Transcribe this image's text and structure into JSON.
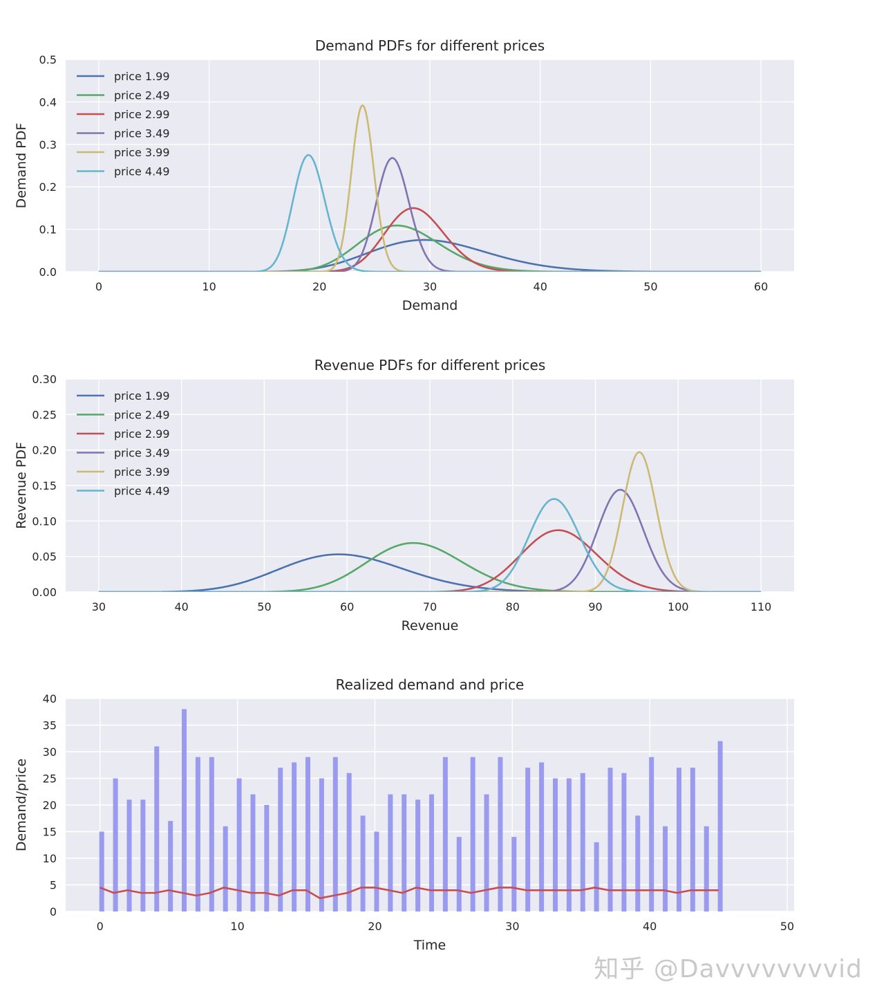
{
  "watermark": "知乎 @Davvvvvvvvid",
  "colors": {
    "panel_bg": "#eaeaf2",
    "grid": "#ffffff",
    "text": "#262626",
    "bar": "#9a9aee",
    "price_line": "#c44e52"
  },
  "chart_data": [
    {
      "type": "line",
      "title": "Demand PDFs for different prices",
      "xlabel": "Demand",
      "ylabel": "Demand PDF",
      "xlim": [
        -3,
        63
      ],
      "ylim": [
        0,
        0.5
      ],
      "xticks": [
        0,
        10,
        20,
        30,
        40,
        50,
        60
      ],
      "yticks": [
        0.0,
        0.1,
        0.2,
        0.3,
        0.4,
        0.5
      ],
      "ytick_labels": [
        "0.0",
        "0.1",
        "0.2",
        "0.3",
        "0.4",
        "0.5"
      ],
      "grid": true,
      "legend_position": "top-left",
      "x_range": [
        0,
        60
      ],
      "series": [
        {
          "name": "price 1.99",
          "color": "#4c72b0",
          "peak_x": 29.5,
          "peak_y": 0.075
        },
        {
          "name": "price 2.49",
          "color": "#55a868",
          "peak_x": 27.0,
          "peak_y": 0.109
        },
        {
          "name": "price 2.99",
          "color": "#c44e52",
          "peak_x": 28.5,
          "peak_y": 0.15
        },
        {
          "name": "price 3.49",
          "color": "#8172b2",
          "peak_x": 26.6,
          "peak_y": 0.268
        },
        {
          "name": "price 3.99",
          "color": "#ccb974",
          "peak_x": 23.9,
          "peak_y": 0.392
        },
        {
          "name": "price 4.49",
          "color": "#64b5cd",
          "peak_x": 19.0,
          "peak_y": 0.275
        }
      ]
    },
    {
      "type": "line",
      "title": "Revenue PDFs for different prices",
      "xlabel": "Revenue",
      "ylabel": "Revenue PDF",
      "xlim": [
        26,
        114
      ],
      "ylim": [
        0,
        0.3
      ],
      "xticks": [
        30,
        40,
        50,
        60,
        70,
        80,
        90,
        100,
        110
      ],
      "yticks": [
        0.0,
        0.05,
        0.1,
        0.15,
        0.2,
        0.25,
        0.3
      ],
      "ytick_labels": [
        "0.00",
        "0.05",
        "0.10",
        "0.15",
        "0.20",
        "0.25",
        "0.30"
      ],
      "grid": true,
      "legend_position": "top-left",
      "x_range": [
        30,
        110
      ],
      "series": [
        {
          "name": "price 1.99",
          "color": "#4c72b0",
          "peak_x": 59.0,
          "peak_y": 0.053
        },
        {
          "name": "price 2.49",
          "color": "#55a868",
          "peak_x": 68.0,
          "peak_y": 0.069
        },
        {
          "name": "price 2.99",
          "color": "#c44e52",
          "peak_x": 85.5,
          "peak_y": 0.087
        },
        {
          "name": "price 3.49",
          "color": "#8172b2",
          "peak_x": 93.0,
          "peak_y": 0.144
        },
        {
          "name": "price 3.99",
          "color": "#ccb974",
          "peak_x": 95.3,
          "peak_y": 0.197
        },
        {
          "name": "price 4.49",
          "color": "#64b5cd",
          "peak_x": 85.0,
          "peak_y": 0.131
        }
      ]
    },
    {
      "type": "bar",
      "title": "Realized demand and price",
      "xlabel": "Time",
      "ylabel": "Demand/price",
      "xlim": [
        -2.5,
        50.5
      ],
      "ylim": [
        0,
        40
      ],
      "xticks": [
        0,
        10,
        20,
        30,
        40,
        50
      ],
      "yticks": [
        0,
        5,
        10,
        15,
        20,
        25,
        30,
        35,
        40
      ],
      "ytick_labels": [
        "0",
        "5",
        "10",
        "15",
        "20",
        "25",
        "30",
        "35",
        "40"
      ],
      "grid": true,
      "x": [
        0,
        1,
        2,
        3,
        4,
        5,
        6,
        7,
        8,
        9,
        10,
        11,
        12,
        13,
        14,
        15,
        16,
        17,
        18,
        19,
        20,
        21,
        22,
        23,
        24,
        25,
        26,
        27,
        28,
        29,
        30,
        31,
        32,
        33,
        34,
        35,
        36,
        37,
        38,
        39,
        40,
        41,
        42,
        43,
        44,
        45
      ],
      "demand": [
        15,
        25,
        21,
        21,
        31,
        17,
        38,
        29,
        29,
        16,
        25,
        22,
        20,
        27,
        28,
        29,
        25,
        29,
        26,
        18,
        15,
        22,
        22,
        21,
        22,
        29,
        14,
        29,
        22,
        29,
        14,
        27,
        28,
        25,
        25,
        26,
        13,
        27,
        26,
        18,
        29,
        16,
        27,
        27,
        16,
        32
      ],
      "price": [
        4.49,
        3.49,
        3.99,
        3.49,
        3.49,
        3.99,
        3.49,
        2.99,
        3.49,
        4.49,
        3.99,
        3.49,
        3.49,
        2.99,
        3.99,
        3.99,
        2.49,
        2.99,
        3.49,
        4.49,
        4.49,
        3.99,
        3.49,
        4.49,
        3.99,
        3.99,
        3.99,
        3.49,
        3.99,
        4.49,
        4.49,
        3.99,
        3.99,
        3.99,
        3.99,
        3.99,
        4.49,
        3.99,
        3.99,
        3.99,
        3.99,
        3.99,
        3.49,
        3.99,
        3.99,
        3.99
      ]
    }
  ]
}
